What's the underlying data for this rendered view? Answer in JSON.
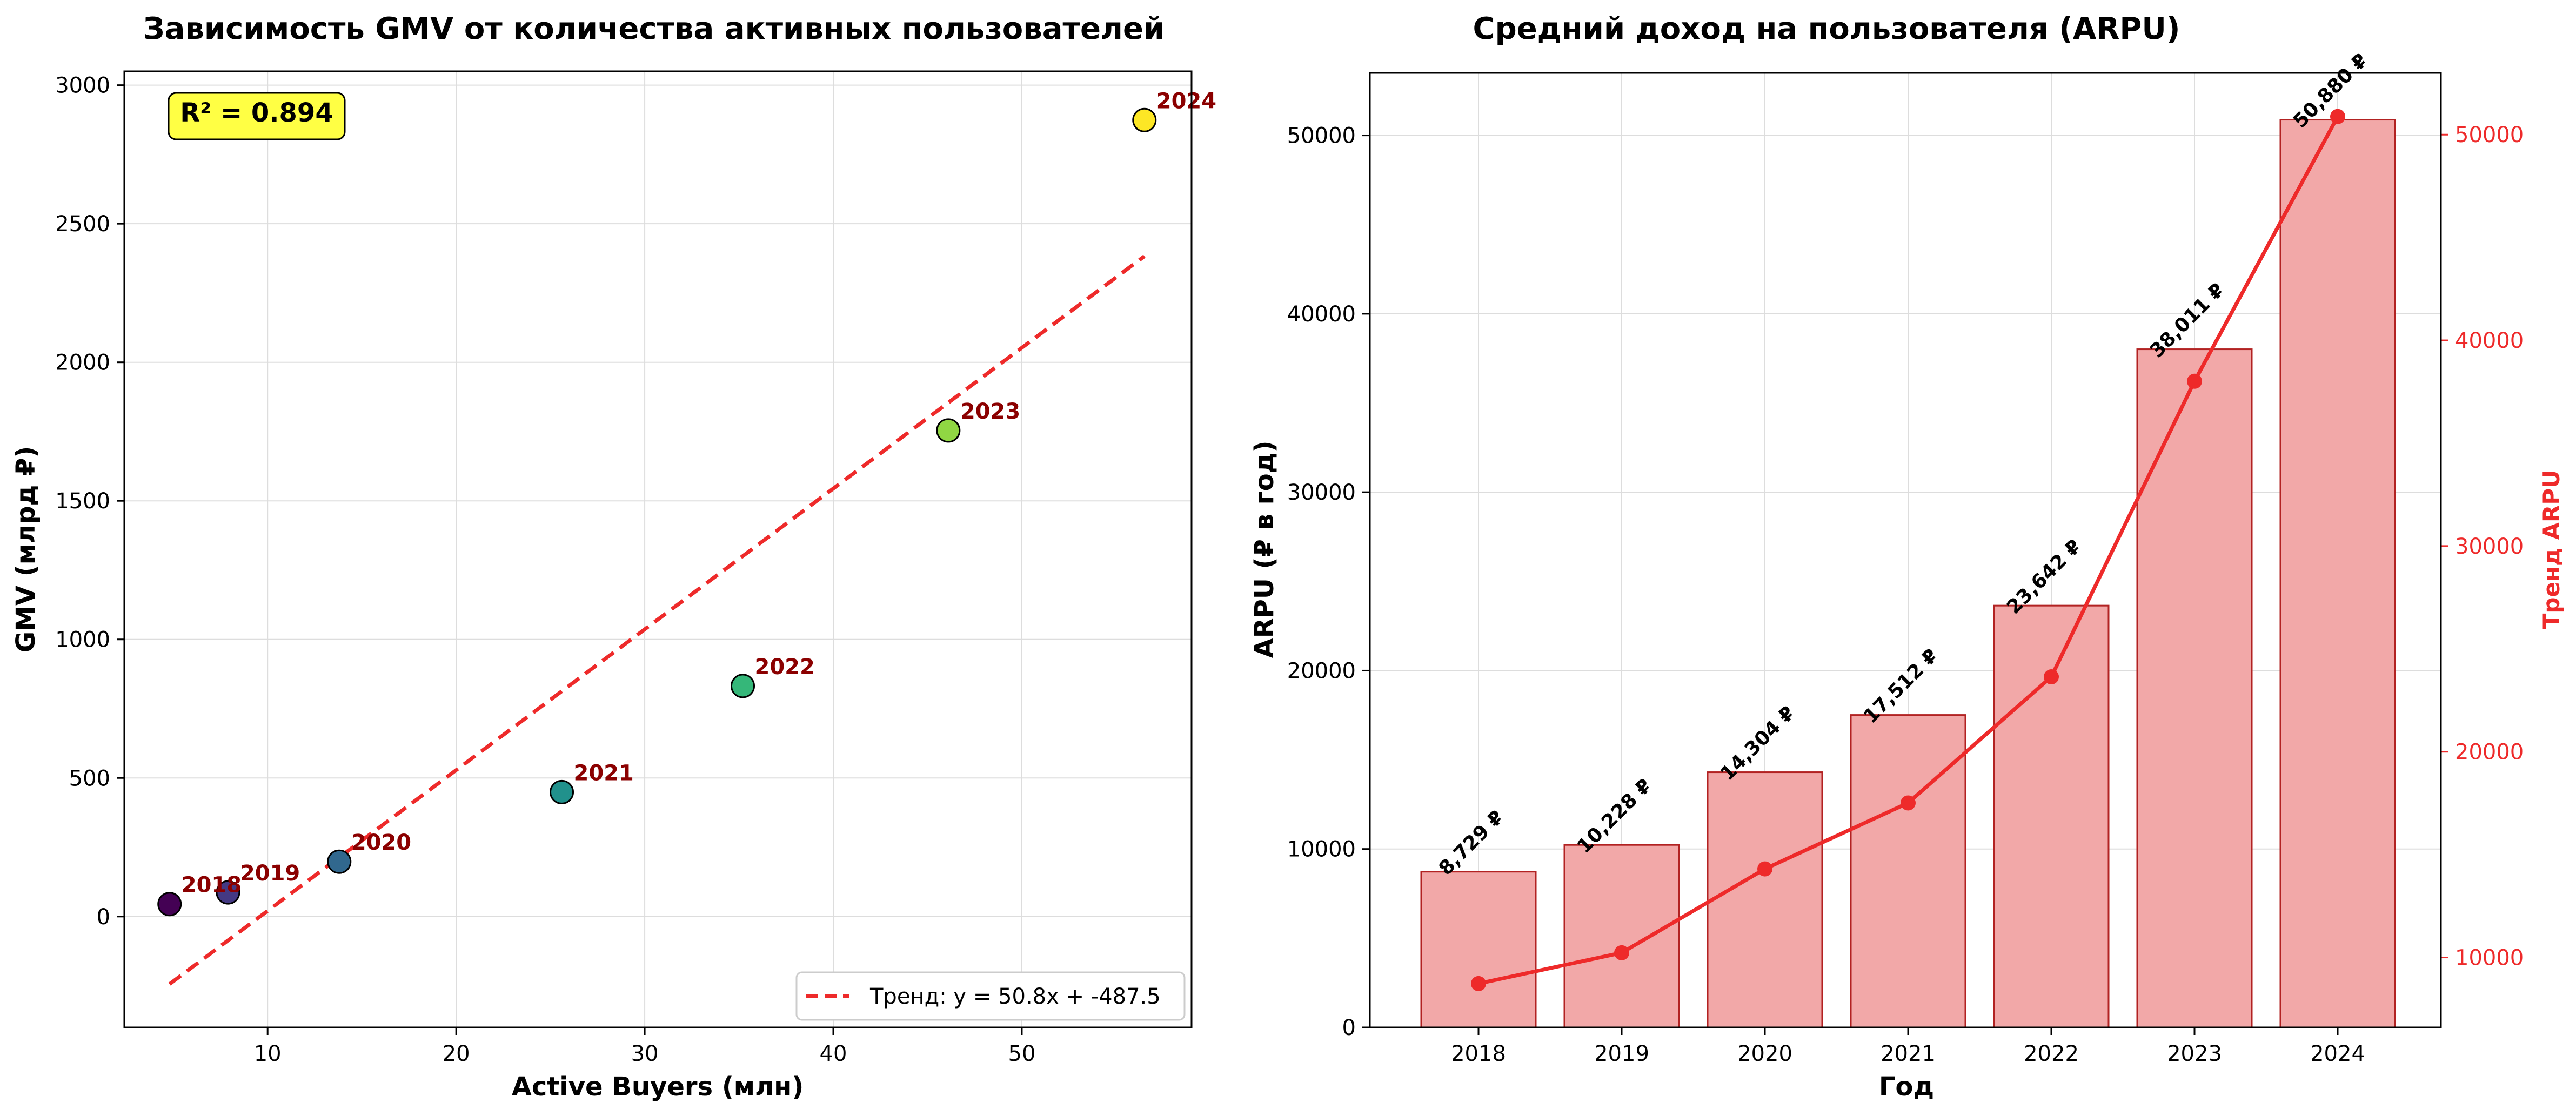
{
  "chart_data": [
    {
      "type": "scatter",
      "title": "Зависимость GMV от количества активных пользователей",
      "xlabel": "Active Buyers (млн)",
      "ylabel": "GMV (млрд ₽)",
      "xlim": [
        2.4,
        59.0
      ],
      "ylim": [
        -400,
        3050
      ],
      "xticks": [
        "10",
        "20",
        "30",
        "40",
        "50"
      ],
      "yticks": [
        "0",
        "500",
        "1000",
        "1500",
        "2000",
        "2500",
        "3000"
      ],
      "grid": true,
      "points": [
        {
          "label": "2018",
          "x": 4.8,
          "y": 45,
          "color": "#440154"
        },
        {
          "label": "2019",
          "x": 7.9,
          "y": 87,
          "color": "#443983"
        },
        {
          "label": "2020",
          "x": 13.8,
          "y": 198,
          "color": "#31688e"
        },
        {
          "label": "2021",
          "x": 25.6,
          "y": 449,
          "color": "#21918c"
        },
        {
          "label": "2022",
          "x": 35.2,
          "y": 832,
          "color": "#35b779"
        },
        {
          "label": "2023",
          "x": 46.1,
          "y": 1754,
          "color": "#90d743"
        },
        {
          "label": "2024",
          "x": 56.5,
          "y": 2874,
          "color": "#fde725"
        }
      ],
      "trend": {
        "label": "Тренд: y = 50.8x + -487.5",
        "slope": 50.8,
        "intercept": -487.5,
        "x_range": [
          4.8,
          56.5
        ],
        "color": "#ee2a2a"
      },
      "annotation": "R² = 0.894",
      "legend_position": "lower-right"
    },
    {
      "type": "bar",
      "title": "Средний доход на пользователя (ARPU)",
      "xlabel": "Год",
      "ylabel": "ARPU (₽ в год)",
      "ylabel_right": "Тренд ARPU",
      "categories": [
        "2018",
        "2019",
        "2020",
        "2021",
        "2022",
        "2023",
        "2024"
      ],
      "values": [
        8729,
        10228,
        14304,
        17512,
        23642,
        38011,
        50880
      ],
      "value_labels": [
        "8,729 ₽",
        "10,228 ₽",
        "14,304 ₽",
        "17,512 ₽",
        "23,642 ₽",
        "38,011 ₽",
        "50,880 ₽"
      ],
      "ylim": [
        0,
        53500
      ],
      "ylim_right": [
        6600,
        53000
      ],
      "yticks": [
        "0",
        "10000",
        "20000",
        "30000",
        "40000",
        "50000"
      ],
      "yticks_right": [
        "10000",
        "20000",
        "30000",
        "40000",
        "50000"
      ],
      "grid": true,
      "bar_color": "#f2a8a8",
      "bar_edge": "#b22222",
      "line_color": "#ee2a2a"
    }
  ]
}
